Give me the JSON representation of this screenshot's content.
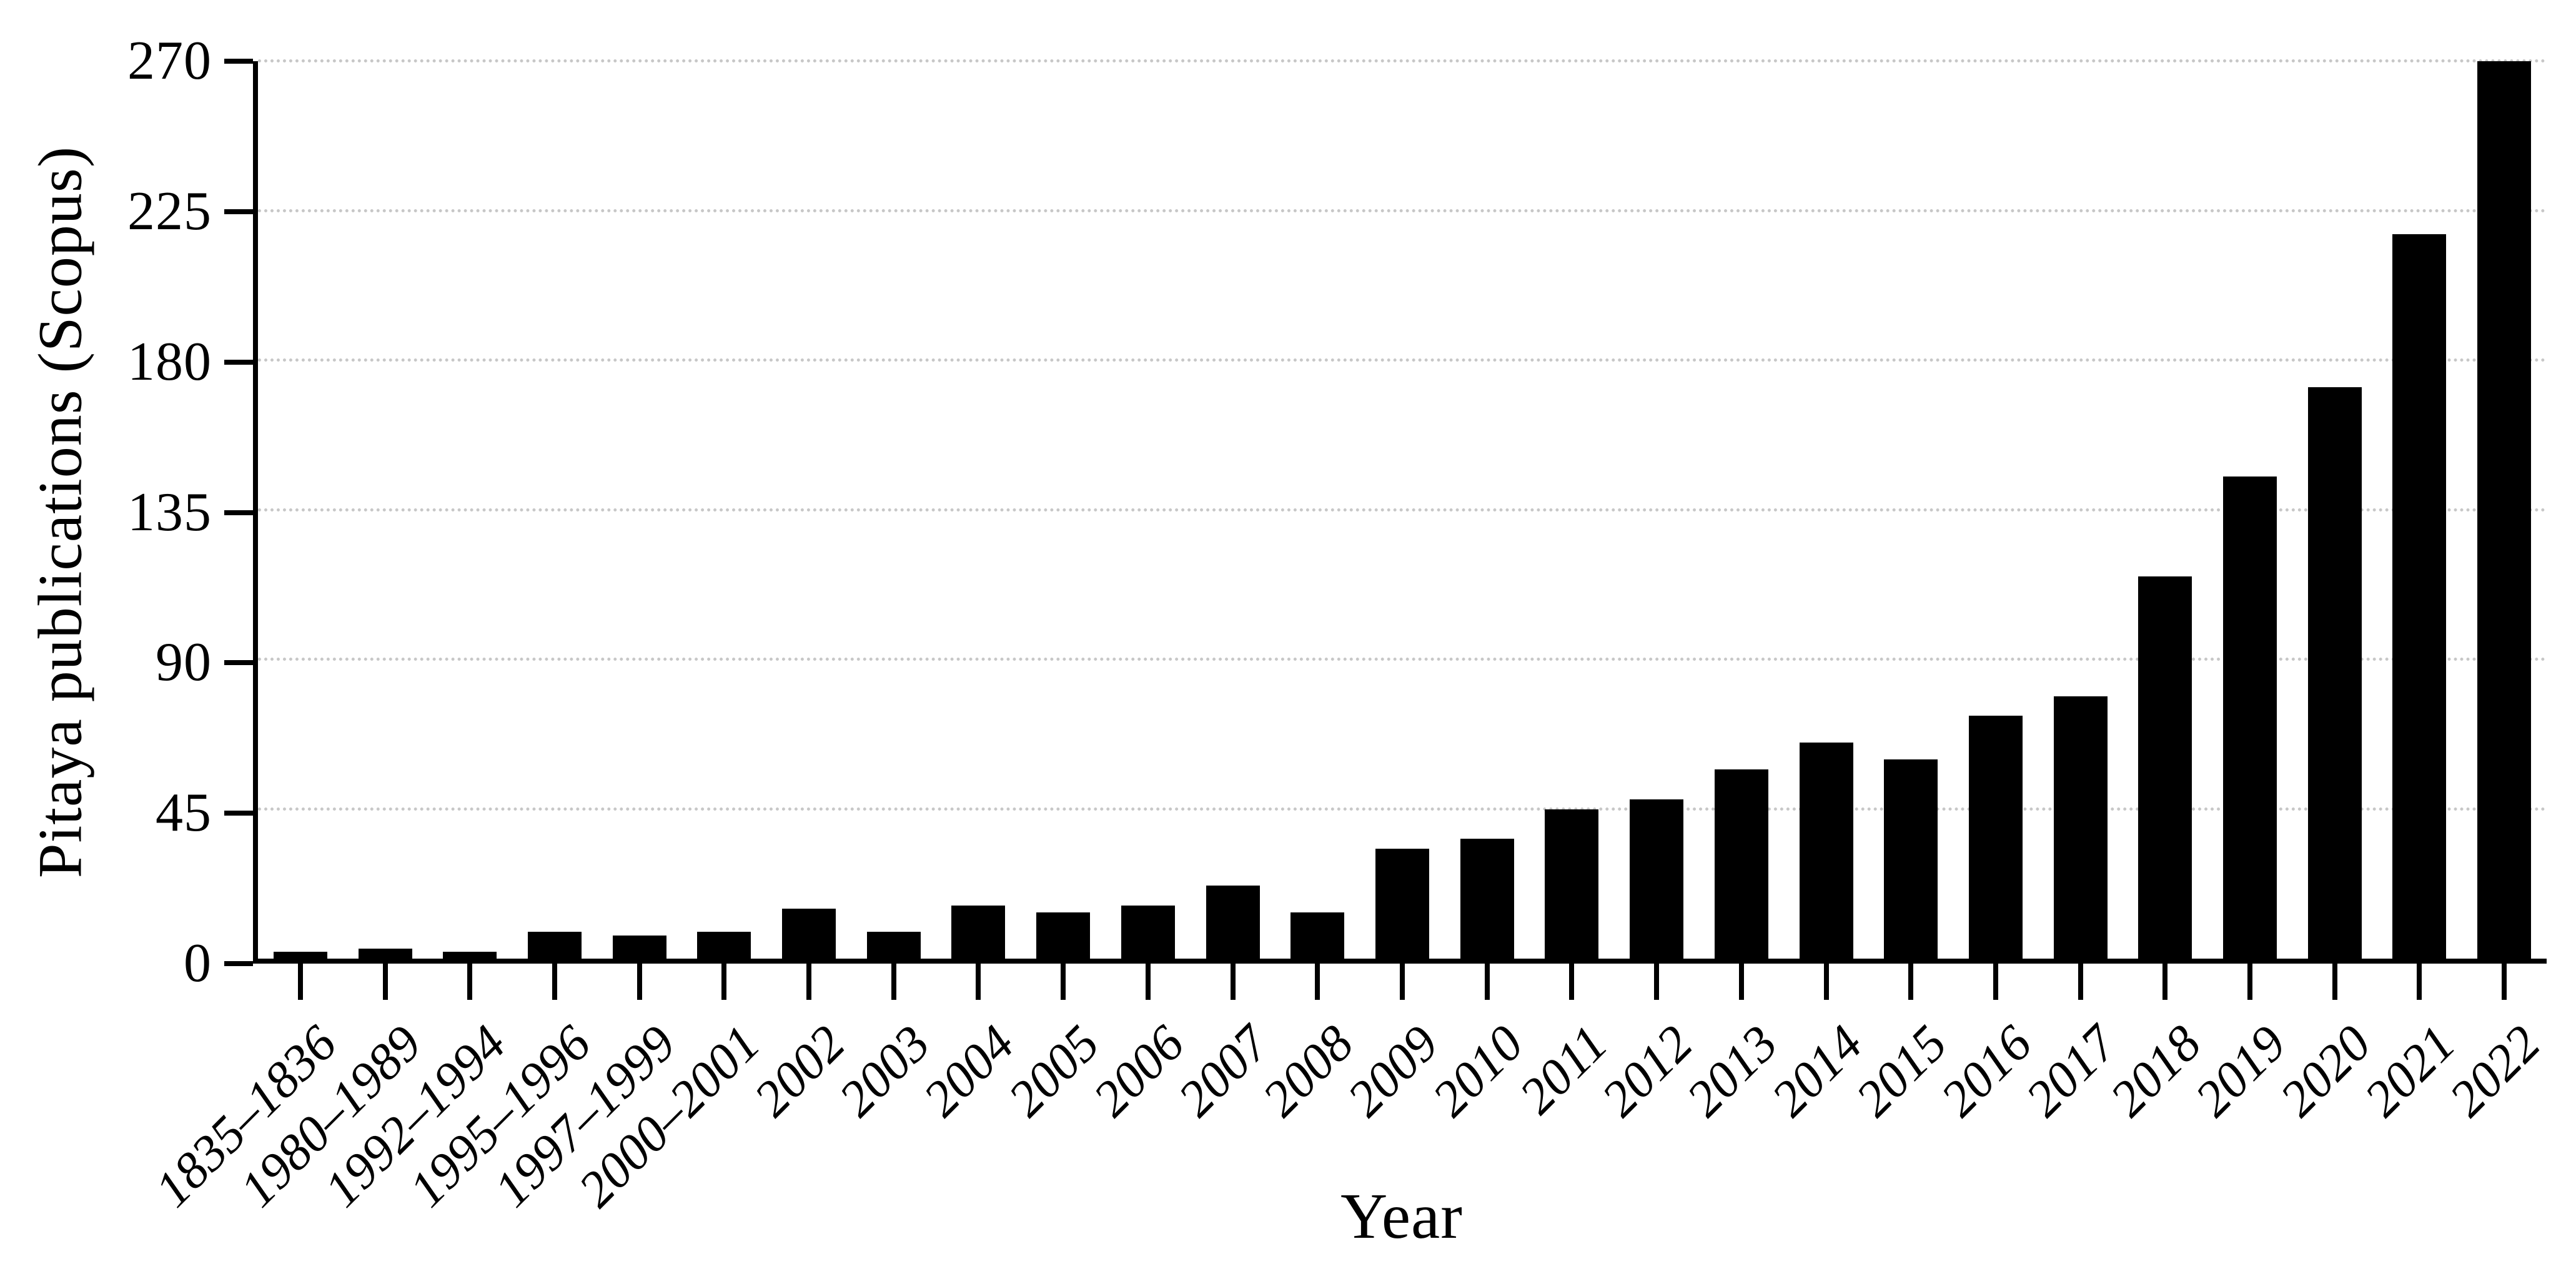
{
  "chart_data": {
    "type": "bar",
    "title": "",
    "xlabel": "Year",
    "ylabel": "Pitaya publications (Scopus)",
    "categories": [
      "1835–1836",
      "1980–1989",
      "1992–1994",
      "1995–1996",
      "1997–1999",
      "2000–2001",
      "2002",
      "2003",
      "2004",
      "2005",
      "2006",
      "2007",
      "2008",
      "2009",
      "2010",
      "2011",
      "2012",
      "2013",
      "2014",
      "2015",
      "2016",
      "2017",
      "2018",
      "2019",
      "2020",
      "2021",
      "2022"
    ],
    "values": [
      2,
      3,
      2,
      8,
      7,
      8,
      15,
      8,
      16,
      14,
      16,
      22,
      14,
      33,
      36,
      45,
      48,
      57,
      65,
      60,
      73,
      79,
      115,
      145,
      172,
      218,
      270
    ],
    "ylim": [
      0,
      270
    ],
    "yticks": [
      0,
      45,
      90,
      135,
      180,
      225,
      270
    ],
    "legend": "none",
    "grid": "horizontal-dotted",
    "colors": {
      "bar": "#000000",
      "axis": "#000000",
      "gridline": "#c7c7c7",
      "background": "#ffffff",
      "text": "#000000"
    }
  }
}
